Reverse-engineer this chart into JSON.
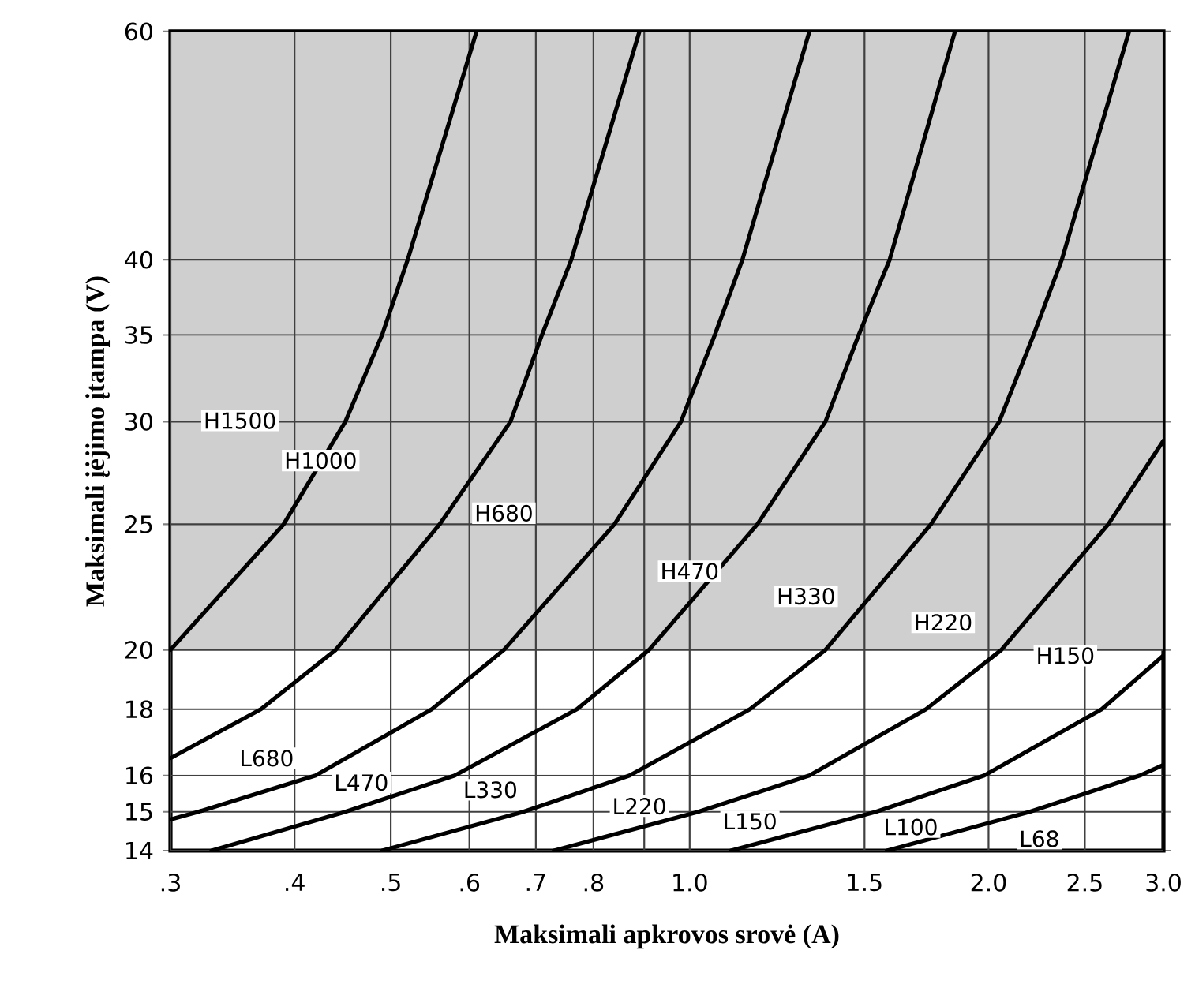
{
  "chart_data": {
    "type": "line",
    "xlabel": "Maksimali apkrovos srovė (A)",
    "ylabel": "Maksimali įėjimo įtampa (V)",
    "log": "xy",
    "xlim": [
      0.3,
      3.0
    ],
    "ylim": [
      14,
      60
    ],
    "xticks": [
      {
        "value": 0.3,
        "label": ".3"
      },
      {
        "value": 0.4,
        "label": ".4"
      },
      {
        "value": 0.5,
        "label": ".5"
      },
      {
        "value": 0.6,
        "label": ".6"
      },
      {
        "value": 0.7,
        "label": ".7"
      },
      {
        "value": 0.8,
        "label": ".8"
      },
      {
        "value": 0.9,
        "label": null
      },
      {
        "value": 1.0,
        "label": "1.0"
      },
      {
        "value": 1.5,
        "label": "1.5"
      },
      {
        "value": 2.0,
        "label": "2.0"
      },
      {
        "value": 2.5,
        "label": "2.5"
      },
      {
        "value": 3.0,
        "label": "3.0"
      }
    ],
    "yticks": [
      14,
      15,
      16,
      18,
      20,
      25,
      30,
      35,
      40,
      60
    ],
    "grid": true,
    "series": [
      {
        "color": "#000000",
        "x": [
          0.3,
          0.39,
          0.45,
          0.49,
          0.52,
          0.61
        ],
        "values": [
          20,
          25,
          30,
          35,
          40,
          60
        ]
      },
      {
        "color": "#000000",
        "x": [
          0.3,
          0.37,
          0.44,
          0.56,
          0.66,
          0.71,
          0.76,
          0.89
        ],
        "values": [
          16.5,
          18,
          20,
          25,
          30,
          35,
          40,
          60
        ]
      },
      {
        "color": "#000000",
        "x": [
          0.3,
          0.32,
          0.42,
          0.55,
          0.65,
          0.84,
          0.98,
          1.06,
          1.13,
          1.32
        ],
        "values": [
          14.8,
          15,
          16,
          18,
          20,
          25,
          30,
          35,
          40,
          60
        ]
      },
      {
        "color": "#000000",
        "x": [
          0.33,
          0.45,
          0.58,
          0.77,
          0.91,
          1.17,
          1.37,
          1.48,
          1.59,
          1.85
        ],
        "values": [
          14,
          15,
          16,
          18,
          20,
          25,
          30,
          35,
          40,
          60
        ]
      },
      {
        "color": "#000000",
        "x": [
          0.49,
          0.68,
          0.87,
          1.15,
          1.37,
          1.75,
          2.05,
          2.22,
          2.37,
          2.77
        ],
        "values": [
          14,
          15,
          16,
          18,
          20,
          25,
          30,
          35,
          40,
          60
        ]
      },
      {
        "color": "#000000",
        "x": [
          0.73,
          1.02,
          1.32,
          1.73,
          2.06,
          2.64,
          3.0
        ],
        "values": [
          14,
          15,
          16,
          18,
          20,
          25,
          29
        ]
      },
      {
        "color": "#000000",
        "x": [
          1.1,
          1.54,
          1.98,
          2.6,
          3.0
        ],
        "values": [
          14,
          15,
          16,
          18,
          19.8
        ]
      },
      {
        "color": "#000000",
        "x": [
          1.58,
          2.2,
          2.84,
          3.0
        ],
        "values": [
          14,
          15,
          16,
          16.3
        ]
      }
    ],
    "bands": [
      {
        "axis": "y",
        "from": 20,
        "to": 60,
        "color": "#cfcfcf"
      }
    ],
    "annotations": [
      "H1500",
      {
        "text": "H1000",
        "x": 0.425,
        "y": 28
      },
      {
        "text": "H680",
        "x": 0.65,
        "y": 25.5
      },
      {
        "text": "H470",
        "x": 1.0,
        "y": 23
      },
      {
        "text": "H330",
        "x": 1.31,
        "y": 22
      },
      {
        "text": "H220",
        "x": 1.8,
        "y": 21
      },
      {
        "text": "H150",
        "x": 2.39,
        "y": 19.8
      },
      {
        "text": "L680",
        "x": 0.375,
        "y": 16.5
      },
      {
        "text": "L470",
        "x": 0.467,
        "y": 15.8
      },
      {
        "text": "L330",
        "x": 0.63,
        "y": 15.6
      },
      {
        "text": "L220",
        "x": 0.89,
        "y": 15.15
      },
      {
        "text": "L150",
        "x": 1.15,
        "y": 14.75
      },
      {
        "text": "L100",
        "x": 1.67,
        "y": 14.6
      },
      {
        "text": "L68",
        "x": 2.25,
        "y": 14.3
      }
    ]
  }
}
